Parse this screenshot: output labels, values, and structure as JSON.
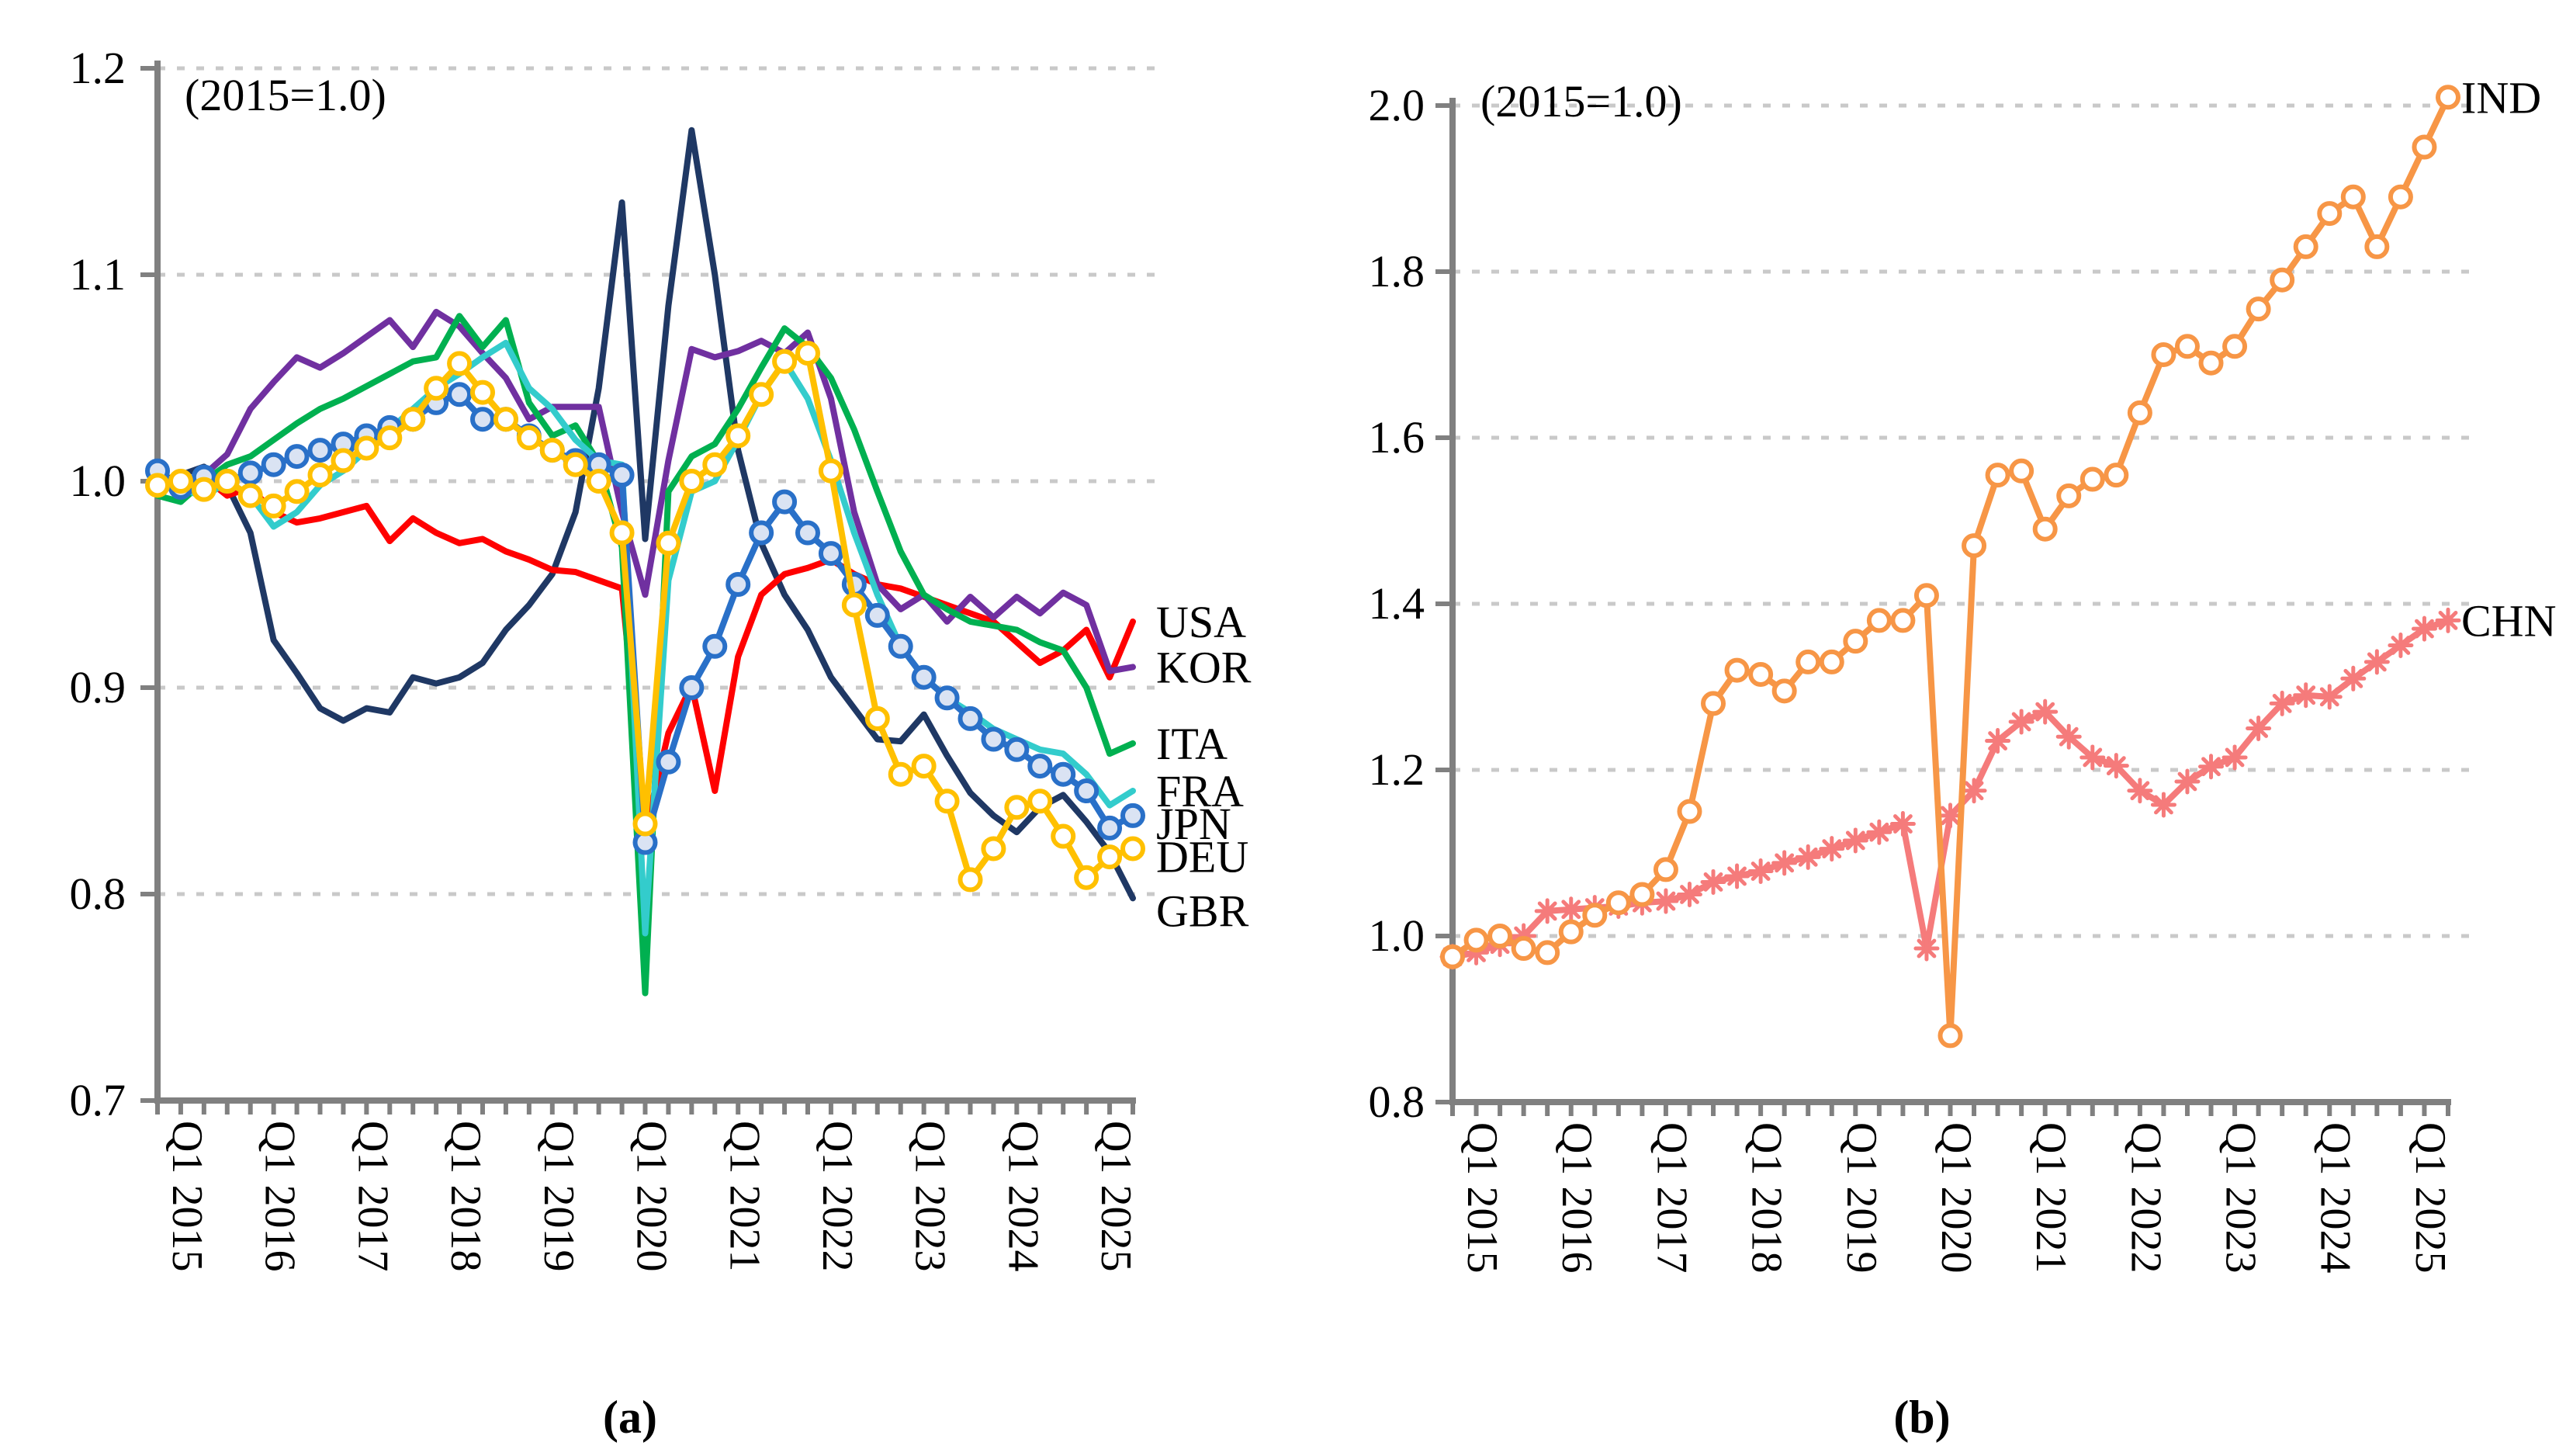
{
  "figure": {
    "background": "#ffffff",
    "axis_color": "#808080",
    "grid_color": "#c9c9c9",
    "text_color": "#000000"
  },
  "captions": {
    "a": "(a)",
    "b": "(b)"
  },
  "chart_data": [
    {
      "id": "panel-a",
      "type": "line",
      "title": "(2015=1.0)",
      "caption": "(a)",
      "xlabel": "",
      "ylabel": "",
      "ylim": [
        0.7,
        1.2
      ],
      "y_tick_labels": [
        "1.2",
        "1.1",
        "1.0",
        "0.9",
        "0.8",
        "0.7"
      ],
      "y_tick_values": [
        1.2,
        1.1,
        1.0,
        0.9,
        0.8,
        0.7
      ],
      "grid_values": [
        1.2,
        1.1,
        1.0,
        0.9,
        0.8
      ],
      "grid_on": true,
      "legend_position": "right-of-line-ends",
      "x_unit": "quarter",
      "x_range_quarters": 43,
      "x_year_labels": [
        "Q1 2015",
        "Q1 2016",
        "Q1 2017",
        "Q1 2018",
        "Q1 2019",
        "Q1 2020",
        "Q1 2021",
        "Q1 2022",
        "Q1 2023",
        "Q1 2024",
        "Q1 2025"
      ],
      "series": [
        {
          "name": "GBR",
          "color": "#1F3864",
          "marker": "none",
          "label_dy": 16,
          "values": [
            1.0,
            1.003,
            1.007,
            0.998,
            0.975,
            0.923,
            0.907,
            0.89,
            0.884,
            0.89,
            0.888,
            0.905,
            0.902,
            0.905,
            0.912,
            0.928,
            0.94,
            0.955,
            0.985,
            1.045,
            1.135,
            0.972,
            1.085,
            1.17,
            1.1,
            1.015,
            0.97,
            0.945,
            0.928,
            0.905,
            0.89,
            0.875,
            0.874,
            0.887,
            0.867,
            0.849,
            0.838,
            0.83,
            0.842,
            0.848,
            0.835,
            0.82,
            0.798
          ]
        },
        {
          "name": "USA",
          "color": "#FF0000",
          "marker": "none",
          "label_dy": 0,
          "values": [
            1.0,
            0.997,
            1.002,
            0.993,
            0.997,
            0.985,
            0.98,
            0.982,
            0.985,
            0.988,
            0.971,
            0.982,
            0.975,
            0.97,
            0.972,
            0.966,
            0.962,
            0.957,
            0.956,
            0.952,
            0.948,
            0.83,
            0.878,
            0.901,
            0.85,
            0.915,
            0.945,
            0.955,
            0.958,
            0.962,
            0.955,
            0.95,
            0.948,
            0.944,
            0.94,
            0.936,
            0.932,
            0.922,
            0.912,
            0.918,
            0.928,
            0.905,
            0.932
          ]
        },
        {
          "name": "KOR",
          "color": "#7030A0",
          "marker": "none",
          "label_dy": 0,
          "values": [
            1.0,
            0.996,
            1.003,
            1.013,
            1.035,
            1.048,
            1.06,
            1.055,
            1.062,
            1.07,
            1.078,
            1.065,
            1.082,
            1.075,
            1.062,
            1.05,
            1.03,
            1.036,
            1.036,
            1.036,
            0.985,
            0.945,
            1.01,
            1.064,
            1.06,
            1.063,
            1.068,
            1.062,
            1.072,
            1.04,
            0.985,
            0.95,
            0.938,
            0.945,
            0.932,
            0.944,
            0.934,
            0.944,
            0.936,
            0.946,
            0.94,
            0.908,
            0.91
          ]
        },
        {
          "name": "ITA",
          "color": "#00B050",
          "marker": "none",
          "label_dy": 0,
          "values": [
            0.993,
            0.99,
            1.0,
            1.008,
            1.012,
            1.02,
            1.028,
            1.035,
            1.04,
            1.046,
            1.052,
            1.058,
            1.06,
            1.08,
            1.065,
            1.078,
            1.038,
            1.022,
            1.027,
            1.009,
            0.968,
            0.752,
            0.995,
            1.012,
            1.018,
            1.035,
            1.055,
            1.074,
            1.065,
            1.05,
            1.025,
            0.995,
            0.966,
            0.945,
            0.938,
            0.932,
            0.93,
            0.928,
            0.922,
            0.918,
            0.9,
            0.868,
            0.873
          ]
        },
        {
          "name": "FRA",
          "color": "#33CCCC",
          "marker": "none",
          "label_dy": 0,
          "values": [
            1.0,
            0.997,
            0.992,
            1.0,
            0.993,
            0.978,
            0.985,
            0.998,
            1.005,
            1.015,
            1.025,
            1.035,
            1.045,
            1.052,
            1.06,
            1.067,
            1.045,
            1.035,
            1.02,
            1.01,
            1.008,
            0.781,
            0.952,
            0.995,
            1.0,
            1.02,
            1.042,
            1.058,
            1.04,
            1.01,
            0.975,
            0.945,
            0.92,
            0.905,
            0.895,
            0.888,
            0.88,
            0.875,
            0.87,
            0.868,
            0.858,
            0.843,
            0.85
          ]
        },
        {
          "name": "JPN",
          "color": "#2970C8",
          "marker": "circle",
          "marker_fill": "#DAE3F3",
          "label_dy": 10,
          "values": [
            1.005,
            0.997,
            1.002,
            1.0,
            1.004,
            1.008,
            1.012,
            1.015,
            1.018,
            1.022,
            1.026,
            1.03,
            1.038,
            1.042,
            1.03,
            1.03,
            1.022,
            1.015,
            1.01,
            1.008,
            1.003,
            0.825,
            0.864,
            0.9,
            0.92,
            0.95,
            0.975,
            0.99,
            0.975,
            0.965,
            0.95,
            0.935,
            0.92,
            0.905,
            0.895,
            0.885,
            0.875,
            0.87,
            0.862,
            0.858,
            0.85,
            0.832,
            0.838
          ]
        },
        {
          "name": "DEU",
          "color": "#FFC000",
          "marker": "circle",
          "marker_fill": "#FFFFFF",
          "label_dy": 10,
          "values": [
            0.998,
            1.0,
            0.996,
            1.0,
            0.993,
            0.988,
            0.995,
            1.003,
            1.01,
            1.016,
            1.021,
            1.03,
            1.045,
            1.057,
            1.043,
            1.03,
            1.021,
            1.015,
            1.008,
            1.0,
            0.975,
            0.834,
            0.97,
            1.0,
            1.008,
            1.022,
            1.042,
            1.058,
            1.062,
            1.005,
            0.94,
            0.885,
            0.858,
            0.862,
            0.845,
            0.807,
            0.822,
            0.842,
            0.845,
            0.828,
            0.808,
            0.818,
            0.822
          ]
        }
      ]
    },
    {
      "id": "panel-b",
      "type": "line",
      "title": "(2015=1.0)",
      "caption": "(b)",
      "xlabel": "",
      "ylabel": "",
      "ylim": [
        0.8,
        2.0
      ],
      "y_tick_labels": [
        "2.0",
        "1.8",
        "1.6",
        "1.4",
        "1.2",
        "1.0",
        "0.8"
      ],
      "y_tick_values": [
        2.0,
        1.8,
        1.6,
        1.4,
        1.2,
        1.0,
        0.8
      ],
      "grid_values": [
        2.0,
        1.8,
        1.6,
        1.4,
        1.2,
        1.0
      ],
      "grid_on": true,
      "legend_position": "right-of-line-ends",
      "x_unit": "quarter",
      "x_range_quarters": 43,
      "x_year_labels": [
        "Q1 2015",
        "Q1 2016",
        "Q1 2017",
        "Q1 2018",
        "Q1 2019",
        "Q1 2020",
        "Q1 2021",
        "Q1 2022",
        "Q1 2023",
        "Q1 2024",
        "Q1 2025"
      ],
      "series": [
        {
          "name": "CHN",
          "color": "#F57B7B",
          "marker": "asterisk",
          "label_dy": 0,
          "values": [
            0.975,
            0.98,
            0.99,
            1.0,
            1.03,
            1.032,
            1.034,
            1.036,
            1.04,
            1.042,
            1.05,
            1.065,
            1.072,
            1.078,
            1.088,
            1.095,
            1.105,
            1.115,
            1.125,
            1.135,
            0.985,
            1.145,
            1.175,
            1.235,
            1.258,
            1.27,
            1.24,
            1.215,
            1.205,
            1.175,
            1.158,
            1.186,
            1.204,
            1.215,
            1.25,
            1.28,
            1.29,
            1.288,
            1.31,
            1.33,
            1.35,
            1.37,
            1.38
          ]
        },
        {
          "name": "IND",
          "color": "#F79646",
          "marker": "circle",
          "marker_fill": "#FFFFFF",
          "label_dy": 0,
          "values": [
            0.975,
            0.995,
            1.0,
            0.985,
            0.98,
            1.005,
            1.025,
            1.04,
            1.05,
            1.08,
            1.15,
            1.28,
            1.32,
            1.315,
            1.295,
            1.33,
            1.33,
            1.355,
            1.38,
            1.38,
            1.41,
            0.88,
            1.47,
            1.555,
            1.56,
            1.49,
            1.53,
            1.55,
            1.555,
            1.63,
            1.7,
            1.71,
            1.69,
            1.71,
            1.755,
            1.79,
            1.83,
            1.87,
            1.89,
            1.83,
            1.89,
            1.95,
            2.01
          ]
        }
      ]
    }
  ]
}
